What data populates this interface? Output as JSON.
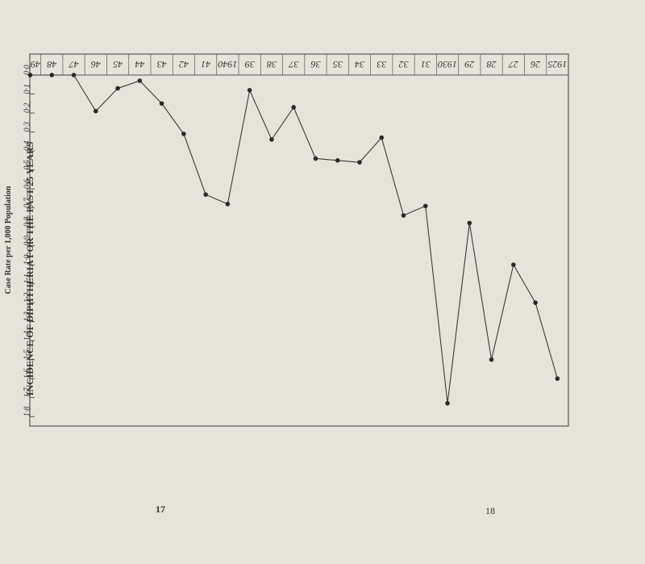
{
  "page_numbers": {
    "left": "17",
    "right": "18"
  },
  "chart_data": {
    "type": "line",
    "title": "INCIDENCE OF DIPHTHERIA FOR THE PAST 25 YEARS",
    "xlabel": "",
    "ylabel": "Case Rate per 1,000 Population",
    "x_tick_labels": [
      "1925",
      "26",
      "27",
      "28",
      "29",
      "1930",
      "31",
      "32",
      "33",
      "34",
      "35",
      "36",
      "37",
      "38",
      "39",
      "1940",
      "41",
      "42",
      "43",
      "44",
      "45",
      "46",
      "47",
      "48",
      "49"
    ],
    "y_tick_labels": [
      "0·0",
      "0·1",
      "0·2",
      "0·3",
      "0·4",
      "0·5",
      "0·6",
      "0·7",
      "0·8",
      "0·9",
      "1·0",
      "1·1",
      "1·2",
      "1·3",
      "1·4",
      "1·5",
      "1·6",
      "1·7",
      "1·8"
    ],
    "ylim": [
      0,
      1.85
    ],
    "grid": false,
    "series": [
      {
        "x": [
          1925,
          1926,
          1927,
          1928,
          1929,
          1930,
          1931,
          1932,
          1933,
          1934,
          1935,
          1936,
          1937,
          1938,
          1939,
          1940,
          1941,
          1942,
          1943,
          1944,
          1945,
          1946,
          1947,
          1948,
          1949
        ],
        "values": [
          1.6,
          1.2,
          1.0,
          1.5,
          0.78,
          1.73,
          0.69,
          0.74,
          0.33,
          0.46,
          0.45,
          0.44,
          0.17,
          0.34,
          0.08,
          0.68,
          0.63,
          0.31,
          0.15,
          0.03,
          0.07,
          0.19,
          0.0,
          0.0,
          0.0
        ]
      }
    ]
  }
}
